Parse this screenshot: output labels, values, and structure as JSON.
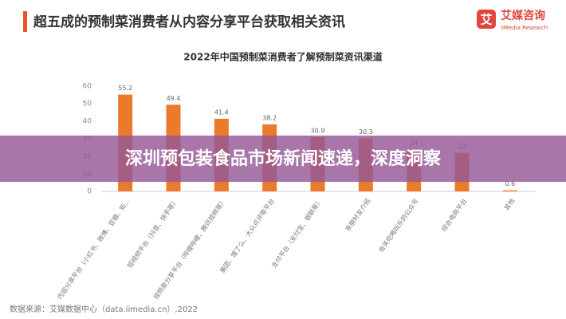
{
  "header": {
    "title": "超五成的预制菜消费者从内容分享平台获取相关资讯"
  },
  "logo": {
    "icon": "艾",
    "name": "艾媒咨询",
    "subtitle": "iiMedia Research"
  },
  "banner": {
    "text": "深圳预包装食品市场新闻速递，深度洞察"
  },
  "source": "数据来源：艾媒数据中心（data.iimedia.cn）,2022",
  "chart_data": {
    "type": "bar",
    "title": "2022年中国预制菜消费者了解预制菜资讯渠道",
    "categories": [
      "内容分享平台（小红书、微博、豆瓣、知…",
      "短视频平台（抖音、快手等）",
      "视频类分享平台（哔哩哔哩、腾讯视频等）",
      "美团、饿了么、大众点评等平台",
      "支付平台（支付宝、银联等）",
      "亲朋好友介绍",
      "有关吃喝玩乐的公众号",
      "综合电商平台",
      "其他"
    ],
    "values": [
      55.2,
      49.4,
      41.4,
      38.2,
      30.9,
      30.3,
      24,
      22,
      0.6
    ],
    "color": "#ea7a2c",
    "ylim": [
      0,
      60
    ],
    "yticks": [
      0,
      10,
      20,
      30,
      40,
      50,
      60
    ],
    "grid": false
  }
}
